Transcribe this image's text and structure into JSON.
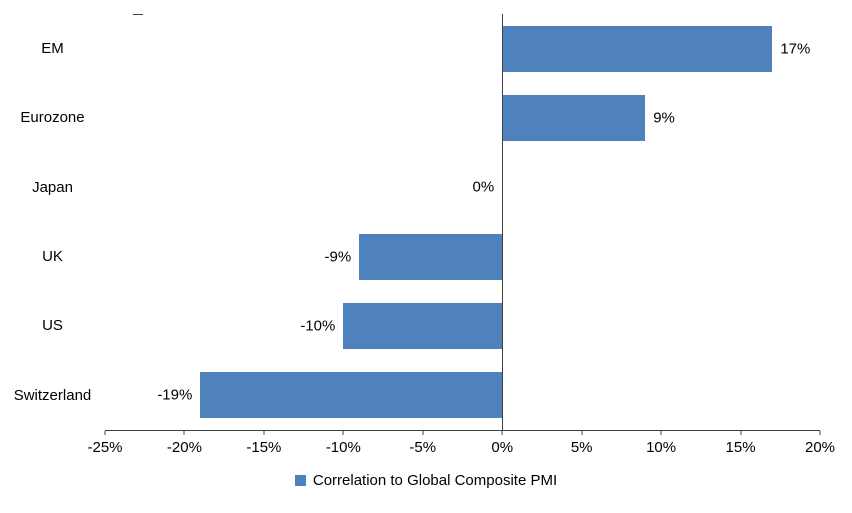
{
  "chart_data": {
    "type": "bar",
    "orientation": "horizontal",
    "categories": [
      "EM",
      "Eurozone",
      "Japan",
      "UK",
      "US",
      "Switzerland"
    ],
    "values": [
      17,
      9,
      0,
      -9,
      -10,
      -19
    ],
    "value_labels": [
      "17%",
      "9%",
      "0%",
      "-9%",
      "-10%",
      "-19%"
    ],
    "xlim": [
      -25,
      20
    ],
    "x_ticks": [
      -25,
      -20,
      -15,
      -10,
      -5,
      0,
      5,
      10,
      15,
      20
    ],
    "x_tick_labels": [
      "-25%",
      "-20%",
      "-15%",
      "-10%",
      "-5%",
      "0%",
      "5%",
      "10%",
      "15%",
      "20%"
    ],
    "legend": "Correlation to Global Composite PMI",
    "legend_position": "bottom",
    "bar_color": "#4F81BD",
    "axis_color": "#404040",
    "grid": false,
    "title": "",
    "xlabel": "",
    "ylabel": ""
  }
}
